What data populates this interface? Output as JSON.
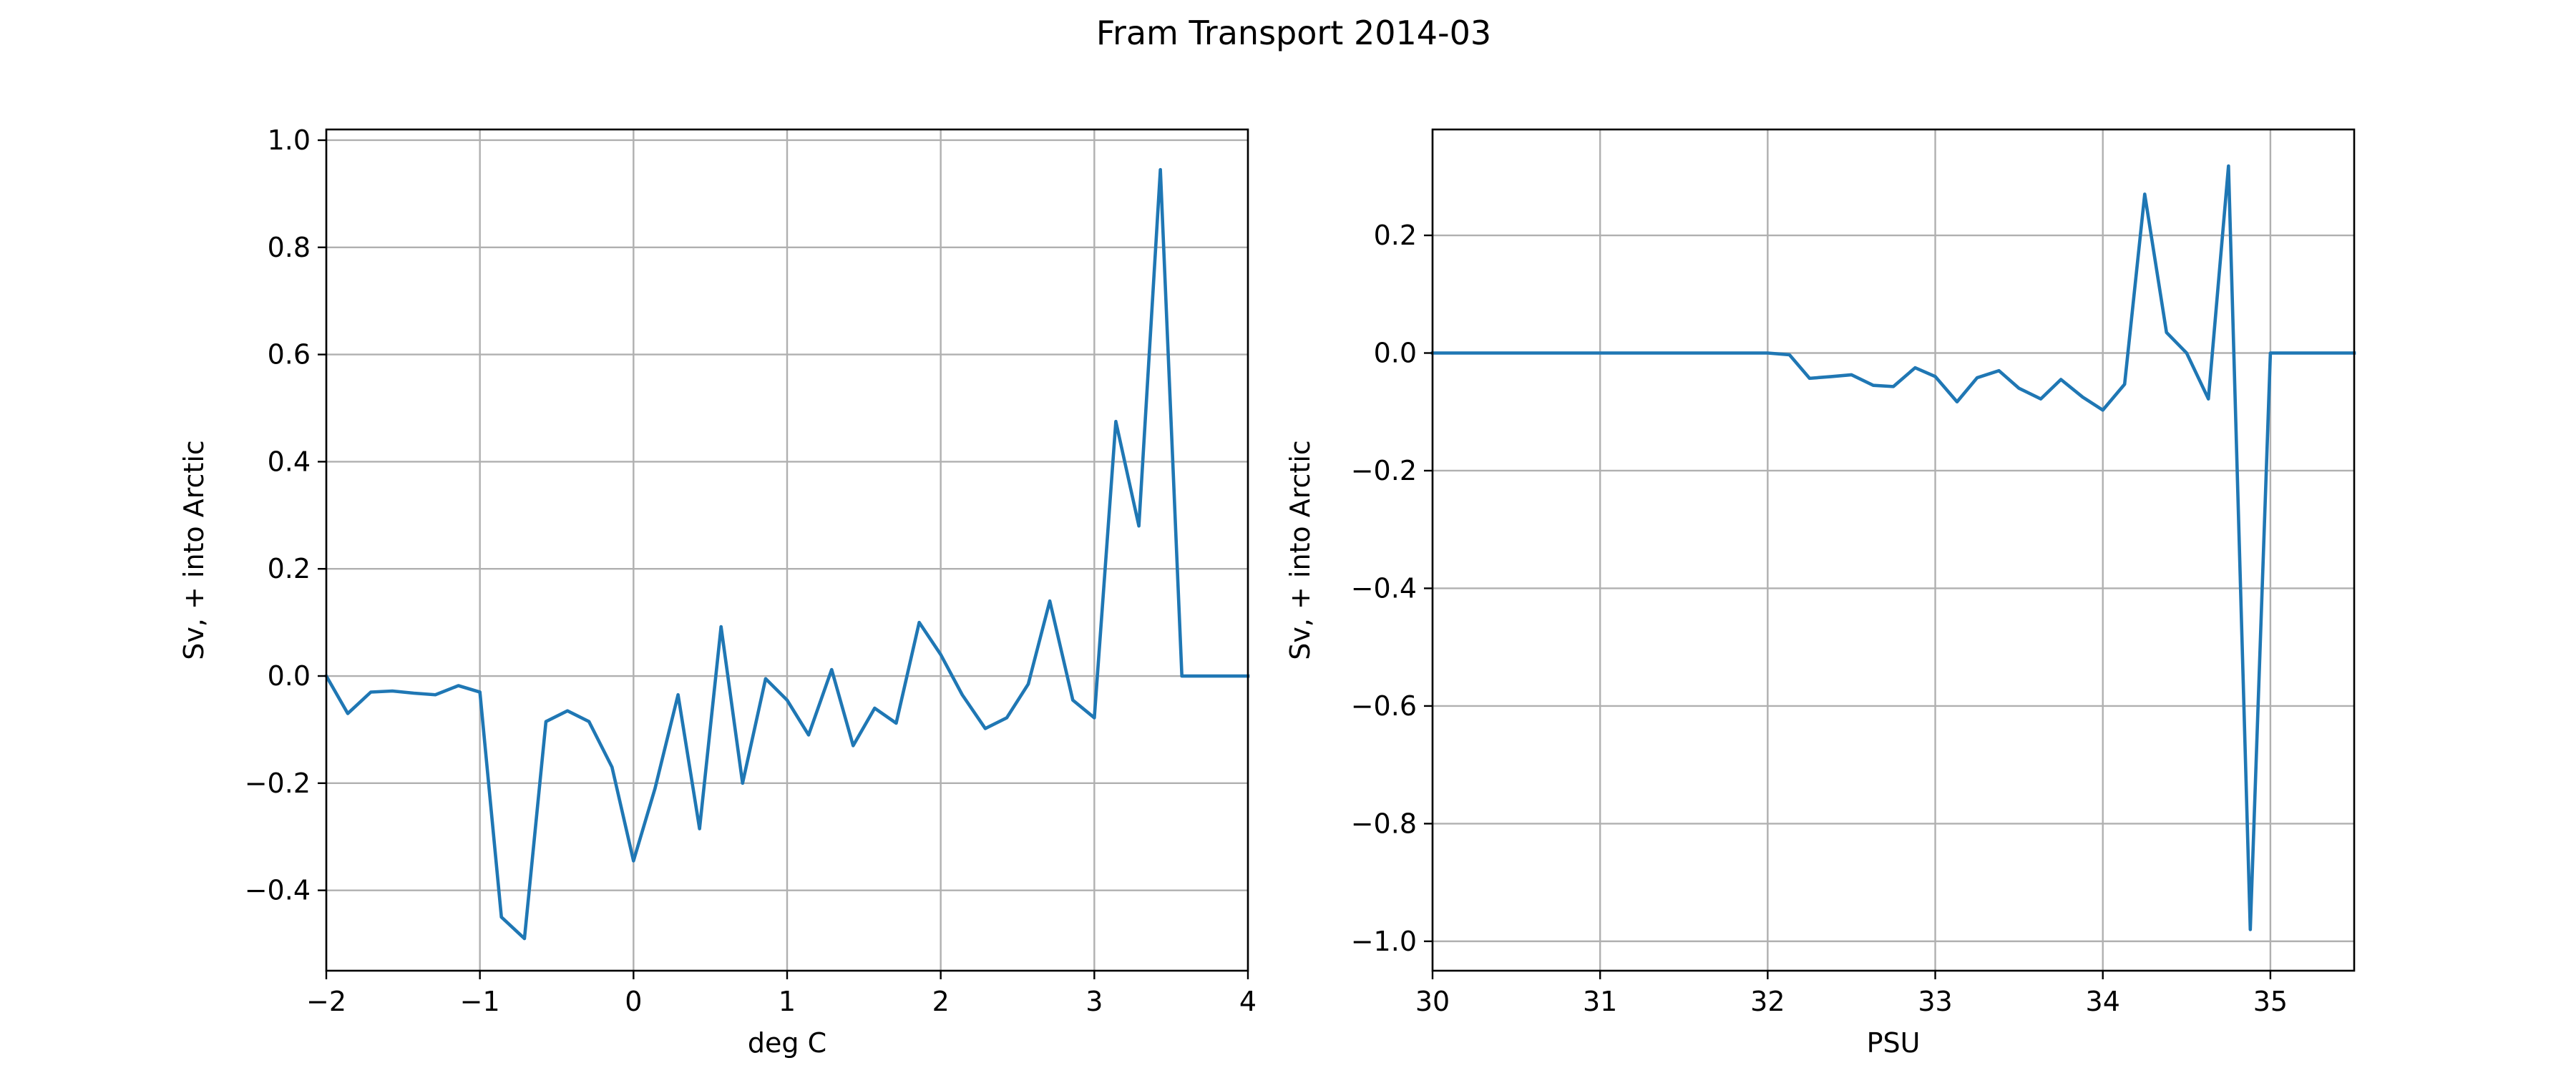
{
  "figure": {
    "suptitle": "Fram Transport 2014-03"
  },
  "colors": {
    "series": "#1f77b4",
    "grid": "#b0b0b0",
    "axes": "#000000"
  },
  "chart_data": [
    {
      "type": "line",
      "title": "",
      "xlabel": "deg C",
      "ylabel": "Sv, + into Arctic",
      "xlim": [
        -2,
        4
      ],
      "ylim": [
        -0.55,
        1.02
      ],
      "xticks": [
        -2,
        -1,
        0,
        1,
        2,
        3,
        4
      ],
      "yticks": [
        -0.4,
        -0.2,
        0.0,
        0.2,
        0.4,
        0.6,
        0.8,
        1.0
      ],
      "xtick_labels": [
        "−2",
        "−1",
        "0",
        "1",
        "2",
        "3",
        "4"
      ],
      "ytick_labels": [
        "−0.4",
        "−0.2",
        "0.0",
        "0.2",
        "0.4",
        "0.6",
        "0.8",
        "1.0"
      ],
      "grid": true,
      "series": [
        {
          "x": [
            -2.0,
            -1.86,
            -1.71,
            -1.57,
            -1.43,
            -1.29,
            -1.14,
            -1.0,
            -0.86,
            -0.71,
            -0.57,
            -0.43,
            -0.29,
            -0.14,
            0.0,
            0.14,
            0.29,
            0.43,
            0.57,
            0.71,
            0.86,
            1.0,
            1.14,
            1.29,
            1.43,
            1.57,
            1.71,
            1.86,
            2.0,
            2.14,
            2.29,
            2.43,
            2.57,
            2.71,
            2.86,
            3.0,
            3.14,
            3.29,
            3.43,
            3.57,
            3.71,
            3.86,
            4.0
          ],
          "y": [
            0.0,
            -0.07,
            -0.03,
            -0.028,
            -0.032,
            -0.035,
            -0.018,
            -0.03,
            -0.45,
            -0.49,
            -0.085,
            -0.065,
            -0.085,
            -0.17,
            -0.345,
            -0.21,
            -0.035,
            -0.285,
            0.092,
            -0.2,
            -0.005,
            -0.045,
            -0.11,
            0.012,
            -0.13,
            -0.06,
            -0.088,
            0.1,
            0.04,
            -0.035,
            -0.098,
            -0.078,
            -0.015,
            0.14,
            -0.045,
            -0.078,
            0.475,
            0.28,
            0.945,
            0.0,
            0.0,
            0.0,
            0.0
          ]
        }
      ]
    },
    {
      "type": "line",
      "title": "",
      "xlabel": "PSU",
      "ylabel": "Sv, + into Arctic",
      "xlim": [
        30,
        35.5
      ],
      "ylim": [
        -1.05,
        0.38
      ],
      "xticks": [
        30,
        31,
        32,
        33,
        34,
        35
      ],
      "yticks": [
        -1.0,
        -0.8,
        -0.6,
        -0.4,
        -0.2,
        0.0,
        0.2
      ],
      "xtick_labels": [
        "30",
        "31",
        "32",
        "33",
        "34",
        "35"
      ],
      "ytick_labels": [
        "−1.0",
        "−0.8",
        "−0.6",
        "−0.4",
        "−0.2",
        "0.0",
        "0.2"
      ],
      "grid": true,
      "series": [
        {
          "x": [
            30.0,
            30.13,
            30.25,
            30.38,
            30.5,
            30.63,
            30.75,
            30.88,
            31.0,
            31.13,
            31.25,
            31.38,
            31.5,
            31.63,
            31.75,
            31.88,
            32.0,
            32.13,
            32.25,
            32.38,
            32.5,
            32.63,
            32.75,
            32.88,
            33.0,
            33.13,
            33.25,
            33.38,
            33.5,
            33.63,
            33.75,
            33.88,
            34.0,
            34.13,
            34.25,
            34.38,
            34.5,
            34.63,
            34.75,
            34.88,
            35.0,
            35.13,
            35.25,
            35.38,
            35.5
          ],
          "y": [
            0.0,
            0.0,
            0.0,
            0.0,
            0.0,
            0.0,
            0.0,
            0.0,
            0.0,
            0.0,
            0.0,
            0.0,
            0.0,
            0.0,
            0.0,
            0.0,
            0.0,
            -0.003,
            -0.043,
            -0.04,
            -0.037,
            -0.055,
            -0.057,
            -0.025,
            -0.04,
            -0.083,
            -0.042,
            -0.03,
            -0.06,
            -0.078,
            -0.045,
            -0.075,
            -0.097,
            -0.053,
            0.27,
            0.035,
            0.0,
            -0.078,
            0.318,
            -0.98,
            0.0,
            0.0,
            0.0,
            0.0,
            0.0
          ]
        }
      ]
    }
  ]
}
